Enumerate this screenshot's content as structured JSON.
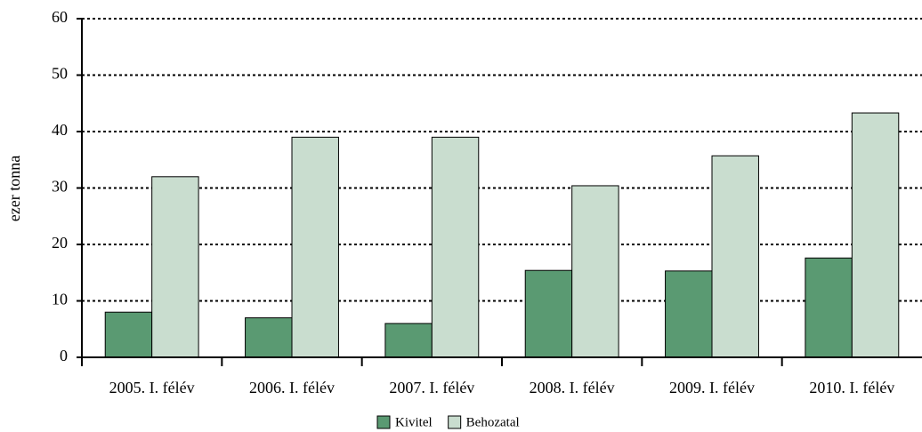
{
  "chart_data": {
    "type": "bar",
    "y_label": "ezer tonna",
    "categories": [
      "2005. I. félév",
      "2006. I. félév",
      "2007. I. félév",
      "2008. I. félév",
      "2009. I. félév",
      "2010. I. félév"
    ],
    "series": [
      {
        "name": "Kivitel",
        "color": "#5a9a72",
        "values": [
          8,
          7,
          6,
          15.4,
          15.3,
          17.6
        ]
      },
      {
        "name": "Behozatal",
        "color": "#c9ddcf",
        "values": [
          32,
          39,
          39,
          30.4,
          35.7,
          43.3
        ]
      }
    ],
    "ylim": [
      0,
      60
    ],
    "yticks": [
      0,
      10,
      20,
      30,
      40,
      50,
      60
    ],
    "grid": true,
    "legend": "bottom"
  }
}
